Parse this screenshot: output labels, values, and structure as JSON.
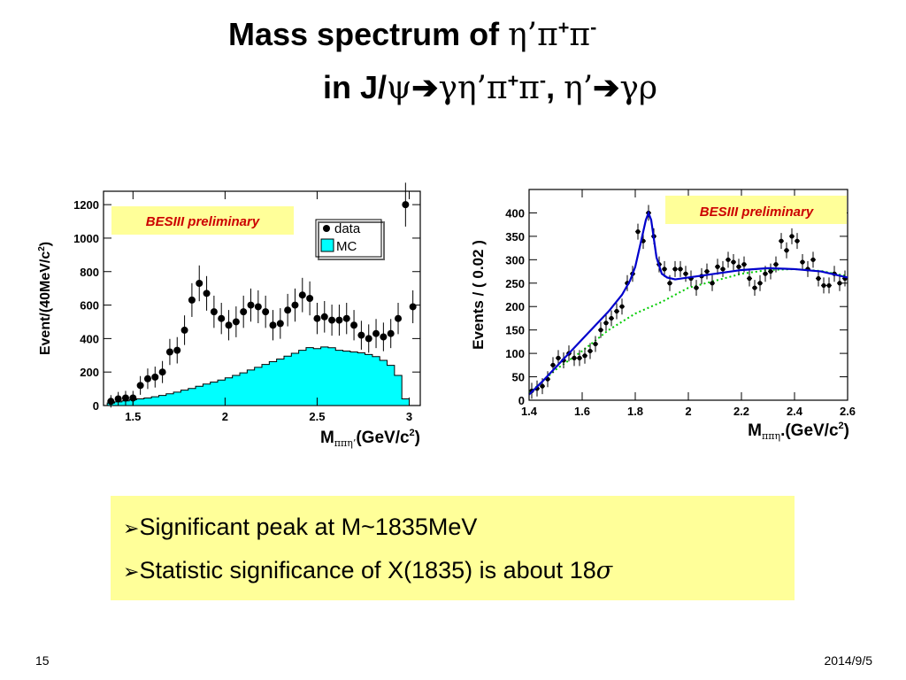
{
  "title": {
    "line1": {
      "text": "Mass spectrum of ",
      "particles": "η’π",
      "sup1": "+",
      "pi2": "π",
      "sup2": "-"
    },
    "line2": {
      "text": "in J/",
      "psi": "ψ",
      "arrow1": "➔",
      "decay1": "γη’π",
      "sup1": "+",
      "pi2": "π",
      "sup2": "-",
      "comma": ", ",
      "eta": "η’",
      "arrow2": "➔",
      "decay2": "γρ"
    }
  },
  "bullets": [
    {
      "icon": "arrow-bullet-icon",
      "marker": "➢",
      "text": "Significant peak at M~1835MeV"
    },
    {
      "icon": "arrow-bullet-icon",
      "marker": "➢",
      "text": "Statistic significance of X(1835) is about 18",
      "symbol": "σ"
    }
  ],
  "footer": {
    "slide_number": "15",
    "date": "2014/9/5"
  },
  "colors": {
    "callout_bg": "#ffff99",
    "mc_fill": "#00ffff",
    "fit_line": "#0000cc",
    "background_fit": "#00cc00",
    "preliminary_text": "#cc0000"
  },
  "chart_data": [
    {
      "type": "bar",
      "label": "BESIII preliminary",
      "xlabel_main": "M",
      "xlabel_sub": "ππη’",
      "xlabel_unit": "(GeV/c",
      "xlabel_sup": "2",
      "xlabel_close": ")",
      "ylabel": "Event/(40MeV/c",
      "ylabel_sup": "2",
      "ylabel_close": ")",
      "xlim": [
        1.34,
        3.06
      ],
      "ylim": [
        0,
        1280
      ],
      "xticks": [
        1.5,
        2,
        2.5,
        3
      ],
      "xtick_labels": [
        "1.5",
        "2",
        "2.5",
        "3"
      ],
      "yticks": [
        0,
        200,
        400,
        600,
        800,
        1000,
        1200
      ],
      "ytick_labels": [
        "0",
        "200",
        "400",
        "600",
        "800",
        "1000",
        "1200"
      ],
      "legend": {
        "data": "data",
        "mc": "MC"
      },
      "mc_bin_width": 0.04,
      "mc_x": [
        1.38,
        1.42,
        1.46,
        1.5,
        1.54,
        1.58,
        1.62,
        1.66,
        1.7,
        1.74,
        1.78,
        1.82,
        1.86,
        1.9,
        1.94,
        1.98,
        2.02,
        2.06,
        2.1,
        2.14,
        2.18,
        2.22,
        2.26,
        2.3,
        2.34,
        2.38,
        2.42,
        2.46,
        2.5,
        2.54,
        2.58,
        2.62,
        2.66,
        2.7,
        2.74,
        2.78,
        2.82,
        2.86,
        2.9,
        2.94,
        2.98,
        3.02
      ],
      "mc_values": [
        15,
        22,
        28,
        35,
        40,
        45,
        52,
        60,
        70,
        80,
        92,
        102,
        115,
        128,
        140,
        152,
        165,
        180,
        195,
        212,
        228,
        245,
        262,
        278,
        295,
        312,
        330,
        346,
        340,
        350,
        345,
        330,
        325,
        320,
        315,
        305,
        292,
        270,
        240,
        180,
        40,
        0
      ],
      "data_x": [
        1.38,
        1.42,
        1.46,
        1.5,
        1.54,
        1.58,
        1.62,
        1.66,
        1.7,
        1.74,
        1.78,
        1.82,
        1.86,
        1.9,
        1.94,
        1.98,
        2.02,
        2.06,
        2.1,
        2.14,
        2.18,
        2.22,
        2.26,
        2.3,
        2.34,
        2.38,
        2.42,
        2.46,
        2.5,
        2.54,
        2.58,
        2.62,
        2.66,
        2.7,
        2.74,
        2.78,
        2.82,
        2.86,
        2.9,
        2.94,
        2.98,
        3.02
      ],
      "data_values": [
        25,
        40,
        45,
        45,
        120,
        160,
        170,
        200,
        320,
        330,
        450,
        630,
        730,
        670,
        560,
        520,
        480,
        500,
        560,
        600,
        590,
        560,
        480,
        490,
        570,
        600,
        660,
        640,
        520,
        530,
        510,
        510,
        520,
        480,
        420,
        400,
        430,
        410,
        430,
        520,
        1200,
        590
      ]
    },
    {
      "type": "scatter",
      "label": "BESIII preliminary",
      "xlabel_main": "M",
      "xlabel_sub": "ππη",
      "xlabel_unit": ".(GeV/c",
      "xlabel_sup": "2",
      "xlabel_close": ")",
      "ylabel": "Events / ( 0.02 )",
      "xlim": [
        1.4,
        2.6
      ],
      "ylim": [
        0,
        450
      ],
      "xticks": [
        1.4,
        1.6,
        1.8,
        2,
        2.2,
        2.4,
        2.6
      ],
      "xtick_labels": [
        "1.4",
        "1.6",
        "1.8",
        "2",
        "2.2",
        "2.4",
        "2.6"
      ],
      "yticks": [
        0,
        50,
        100,
        150,
        200,
        250,
        300,
        350,
        400
      ],
      "ytick_labels": [
        "0",
        "50",
        "100",
        "150",
        "200",
        "250",
        "300",
        "350",
        "400"
      ],
      "x": [
        1.41,
        1.43,
        1.45,
        1.47,
        1.49,
        1.51,
        1.53,
        1.55,
        1.57,
        1.59,
        1.61,
        1.63,
        1.65,
        1.67,
        1.69,
        1.71,
        1.73,
        1.75,
        1.77,
        1.79,
        1.81,
        1.83,
        1.85,
        1.87,
        1.89,
        1.91,
        1.93,
        1.95,
        1.97,
        1.99,
        2.01,
        2.03,
        2.05,
        2.07,
        2.09,
        2.11,
        2.13,
        2.15,
        2.17,
        2.19,
        2.21,
        2.23,
        2.25,
        2.27,
        2.29,
        2.31,
        2.33,
        2.35,
        2.37,
        2.39,
        2.41,
        2.43,
        2.45,
        2.47,
        2.49,
        2.51,
        2.53,
        2.55,
        2.57,
        2.59
      ],
      "y": [
        20,
        25,
        30,
        45,
        75,
        90,
        85,
        100,
        90,
        90,
        95,
        105,
        120,
        150,
        165,
        175,
        190,
        200,
        250,
        270,
        360,
        340,
        400,
        350,
        290,
        280,
        250,
        280,
        280,
        270,
        260,
        240,
        265,
        275,
        250,
        285,
        280,
        300,
        295,
        285,
        290,
        260,
        240,
        250,
        270,
        275,
        290,
        340,
        320,
        350,
        340,
        295,
        280,
        300,
        260,
        245,
        245,
        270,
        250,
        260
      ],
      "yerr": 17,
      "fit_x": [
        1.4,
        1.45,
        1.5,
        1.55,
        1.6,
        1.65,
        1.7,
        1.75,
        1.78,
        1.8,
        1.82,
        1.84,
        1.85,
        1.86,
        1.87,
        1.88,
        1.9,
        1.92,
        1.95,
        2.0,
        2.05,
        2.1,
        2.2,
        2.3,
        2.4,
        2.5,
        2.6
      ],
      "fit_y": [
        12,
        40,
        70,
        100,
        130,
        160,
        190,
        225,
        255,
        285,
        335,
        385,
        400,
        385,
        345,
        305,
        270,
        262,
        258,
        262,
        266,
        270,
        278,
        282,
        280,
        275,
        262
      ],
      "bkg_x": [
        1.4,
        1.5,
        1.6,
        1.7,
        1.8,
        1.9,
        2.0,
        2.1,
        2.2,
        2.3,
        2.4,
        2.5,
        2.6
      ],
      "bkg_y": [
        15,
        65,
        105,
        150,
        185,
        210,
        240,
        255,
        270,
        278,
        280,
        276,
        265
      ]
    }
  ]
}
